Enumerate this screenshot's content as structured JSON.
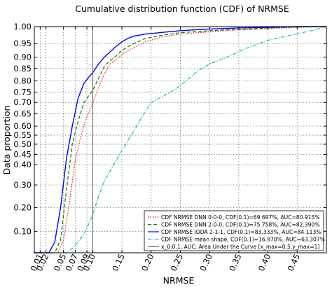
{
  "chart_data": {
    "type": "line",
    "title": "Cumulative distribution function (CDF) of NRMSE",
    "xlabel": "NRMSE",
    "ylabel": "Data proportion",
    "xlim": [
      0,
      0.5
    ],
    "ylim": [
      0,
      1.0
    ],
    "y_scale": "cumulative-probability (nonlinear)",
    "grid": true,
    "legend_position": "lower-right",
    "x_ticks": [
      {
        "value": 0.01,
        "label": "0.01"
      },
      {
        "value": 0.02,
        "label": "0.02"
      },
      {
        "value": 0.05,
        "label": "0.05"
      },
      {
        "value": 0.07,
        "label": "0.07"
      },
      {
        "value": 0.09,
        "label": "0.09"
      },
      {
        "value": 0.1,
        "label": "0.10"
      },
      {
        "value": 0.15,
        "label": "0.15"
      },
      {
        "value": 0.2,
        "label": "0.20"
      },
      {
        "value": 0.25,
        "label": "0.25"
      },
      {
        "value": 0.3,
        "label": "0.30"
      },
      {
        "value": 0.35,
        "label": "0.35"
      },
      {
        "value": 0.4,
        "label": "0.40"
      },
      {
        "value": 0.45,
        "label": "0.45"
      }
    ],
    "y_ticks": [
      {
        "value": 0.1,
        "label": "0.10"
      },
      {
        "value": 0.2,
        "label": "0.20"
      },
      {
        "value": 0.3,
        "label": "0.30"
      },
      {
        "value": 0.4,
        "label": "0.40"
      },
      {
        "value": 0.45,
        "label": "0.45"
      },
      {
        "value": 0.5,
        "label": "0.50"
      },
      {
        "value": 0.55,
        "label": "0.55"
      },
      {
        "value": 0.6,
        "label": "0.60"
      },
      {
        "value": 0.65,
        "label": "0.65"
      },
      {
        "value": 0.7,
        "label": "0.70"
      },
      {
        "value": 0.75,
        "label": "0.75"
      },
      {
        "value": 0.8,
        "label": "0.80"
      },
      {
        "value": 0.85,
        "label": "0.85"
      },
      {
        "value": 0.9,
        "label": "0.90"
      },
      {
        "value": 0.95,
        "label": "0.95"
      },
      {
        "value": 1.0,
        "label": "1.00"
      }
    ],
    "series": [
      {
        "name": "CDF NRMSE DNN 0-0-0, CDF(0.1)=69.697%, AUC=80.915%",
        "color": "#ff0000",
        "style": "dotted",
        "x": [
          0.0,
          0.04,
          0.05,
          0.06,
          0.07,
          0.08,
          0.09,
          0.1,
          0.11,
          0.12,
          0.13,
          0.14,
          0.15,
          0.17,
          0.19,
          0.22,
          0.25,
          0.3,
          0.35,
          0.4,
          0.45,
          0.5
        ],
        "y": [
          0.0,
          0.0,
          0.06,
          0.22,
          0.42,
          0.55,
          0.64,
          0.697,
          0.77,
          0.83,
          0.87,
          0.89,
          0.91,
          0.935,
          0.955,
          0.97,
          0.978,
          0.985,
          0.99,
          0.994,
          0.998,
          1.0
        ]
      },
      {
        "name": "CDF NRMSE DNN 2-0-0, CDF(0.1)=75.758%, AUC=82.390%",
        "color": "#008000",
        "style": "dashed",
        "x": [
          0.0,
          0.035,
          0.045,
          0.055,
          0.065,
          0.075,
          0.085,
          0.095,
          0.1,
          0.11,
          0.12,
          0.13,
          0.14,
          0.15,
          0.17,
          0.19,
          0.22,
          0.25,
          0.3,
          0.35,
          0.4,
          0.45,
          0.5
        ],
        "y": [
          0.0,
          0.0,
          0.06,
          0.28,
          0.5,
          0.62,
          0.7,
          0.74,
          0.758,
          0.81,
          0.86,
          0.885,
          0.905,
          0.925,
          0.95,
          0.965,
          0.975,
          0.982,
          0.988,
          0.992,
          0.996,
          0.999,
          1.0
        ]
      },
      {
        "name": "CDF NRMSE IODA 2-1-1, CDF(0.1)=83.333%, AUC=84.113%",
        "color": "#0000ff",
        "style": "solid",
        "x": [
          0.0,
          0.025,
          0.035,
          0.045,
          0.055,
          0.065,
          0.075,
          0.085,
          0.095,
          0.1,
          0.11,
          0.12,
          0.13,
          0.14,
          0.15,
          0.16,
          0.17,
          0.19,
          0.22,
          0.25,
          0.3,
          0.35,
          0.4,
          0.45,
          0.5
        ],
        "y": [
          0.0,
          0.0,
          0.05,
          0.2,
          0.43,
          0.6,
          0.72,
          0.79,
          0.82,
          0.833,
          0.87,
          0.9,
          0.92,
          0.94,
          0.955,
          0.965,
          0.972,
          0.978,
          0.983,
          0.988,
          0.993,
          0.996,
          0.998,
          1.0,
          1.0
        ]
      },
      {
        "name": "CDF NRMSE mean shape, CDF(0.1)=16.970%, AUC=63.307%",
        "color": "#00bfbf",
        "style": "dashdot",
        "x": [
          0.0,
          0.055,
          0.065,
          0.075,
          0.085,
          0.095,
          0.1,
          0.11,
          0.12,
          0.13,
          0.14,
          0.15,
          0.16,
          0.17,
          0.18,
          0.19,
          0.2,
          0.22,
          0.24,
          0.26,
          0.28,
          0.3,
          0.33,
          0.36,
          0.4,
          0.44,
          0.48,
          0.5
        ],
        "y": [
          0.0,
          0.0,
          0.02,
          0.05,
          0.09,
          0.14,
          0.1697,
          0.25,
          0.32,
          0.37,
          0.42,
          0.47,
          0.52,
          0.57,
          0.62,
          0.66,
          0.7,
          0.73,
          0.76,
          0.8,
          0.84,
          0.87,
          0.9,
          0.93,
          0.96,
          0.975,
          0.99,
          1.0
        ]
      },
      {
        "name": "x_0:0.1, AUC: Area Under the Curve [x_max=0.5,y_max=1]",
        "color": "#555555",
        "style": "solid",
        "x": [
          0.1,
          0.1
        ],
        "y": [
          0.0,
          1.0
        ]
      }
    ]
  }
}
